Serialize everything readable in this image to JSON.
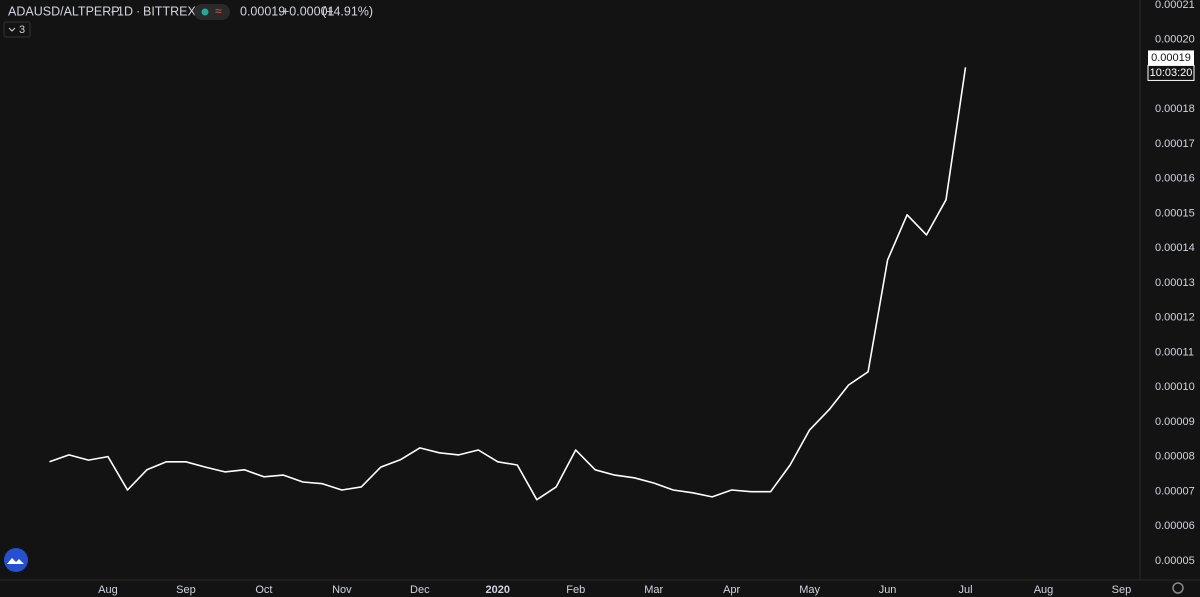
{
  "chart_data": {
    "type": "line",
    "header": {
      "symbol": "ADAUSD/ALTPERP",
      "interval": "1D",
      "exchange": "BITTREX",
      "last": "0.00019",
      "change": "+0.00001",
      "change_pct": "(+4.91%)",
      "indicators": "3"
    },
    "price_label": "0.00019",
    "countdown": "10:03:20",
    "categories": [
      null,
      null,
      null,
      "Aug",
      null,
      null,
      null,
      "Sep",
      null,
      null,
      null,
      "Oct",
      null,
      null,
      null,
      "Nov",
      null,
      null,
      null,
      "Dec",
      null,
      null,
      null,
      "2020",
      null,
      null,
      null,
      "Feb",
      null,
      null,
      null,
      "Mar",
      null,
      null,
      null,
      "Apr",
      null,
      null,
      null,
      "May",
      null,
      null,
      null,
      "Jun",
      null,
      null,
      null,
      "Jul",
      null,
      null,
      null,
      "Aug",
      null,
      null,
      null,
      "Sep"
    ],
    "series": [
      {
        "color": "#ffffff",
        "values": [
          7.85e-05,
          8.05e-05,
          7.9e-05,
          8e-05,
          7.04e-05,
          7.62e-05,
          7.85e-05,
          7.85e-05,
          7.7e-05,
          7.56e-05,
          7.62e-05,
          7.42e-05,
          7.47e-05,
          7.27e-05,
          7.22e-05,
          7.04e-05,
          7.13e-05,
          7.7e-05,
          7.91e-05,
          8.25e-05,
          8.11e-05,
          8.05e-05,
          8.19e-05,
          7.85e-05,
          7.76e-05,
          6.76e-05,
          7.13e-05,
          8.19e-05,
          7.62e-05,
          7.47e-05,
          7.39e-05,
          7.24e-05,
          7.04e-05,
          6.96e-05,
          6.84e-05,
          7.04e-05,
          6.99e-05,
          6.99e-05,
          7.76e-05,
          8.77e-05,
          9.35e-05,
          0.0001006,
          0.0001044,
          0.0001366,
          0.0001496,
          0.0001438,
          0.0001539,
          0.000192,
          null,
          null,
          null,
          null,
          null,
          null,
          null,
          null
        ]
      }
    ],
    "ylim": [
      4.45e-05,
      0.0002114
    ],
    "yticks": [
      5e-05,
      6e-05,
      7e-05,
      8e-05,
      9e-05,
      {
        "value": 0.0001,
        "label": "0.00010"
      },
      0.00011,
      0.00012,
      0.00013,
      0.00014,
      0.00015,
      0.00016,
      0.00017,
      0.00018,
      0.00019,
      {
        "value": 0.0002,
        "label": "0.00020"
      },
      0.00021
    ],
    "grid": false
  }
}
